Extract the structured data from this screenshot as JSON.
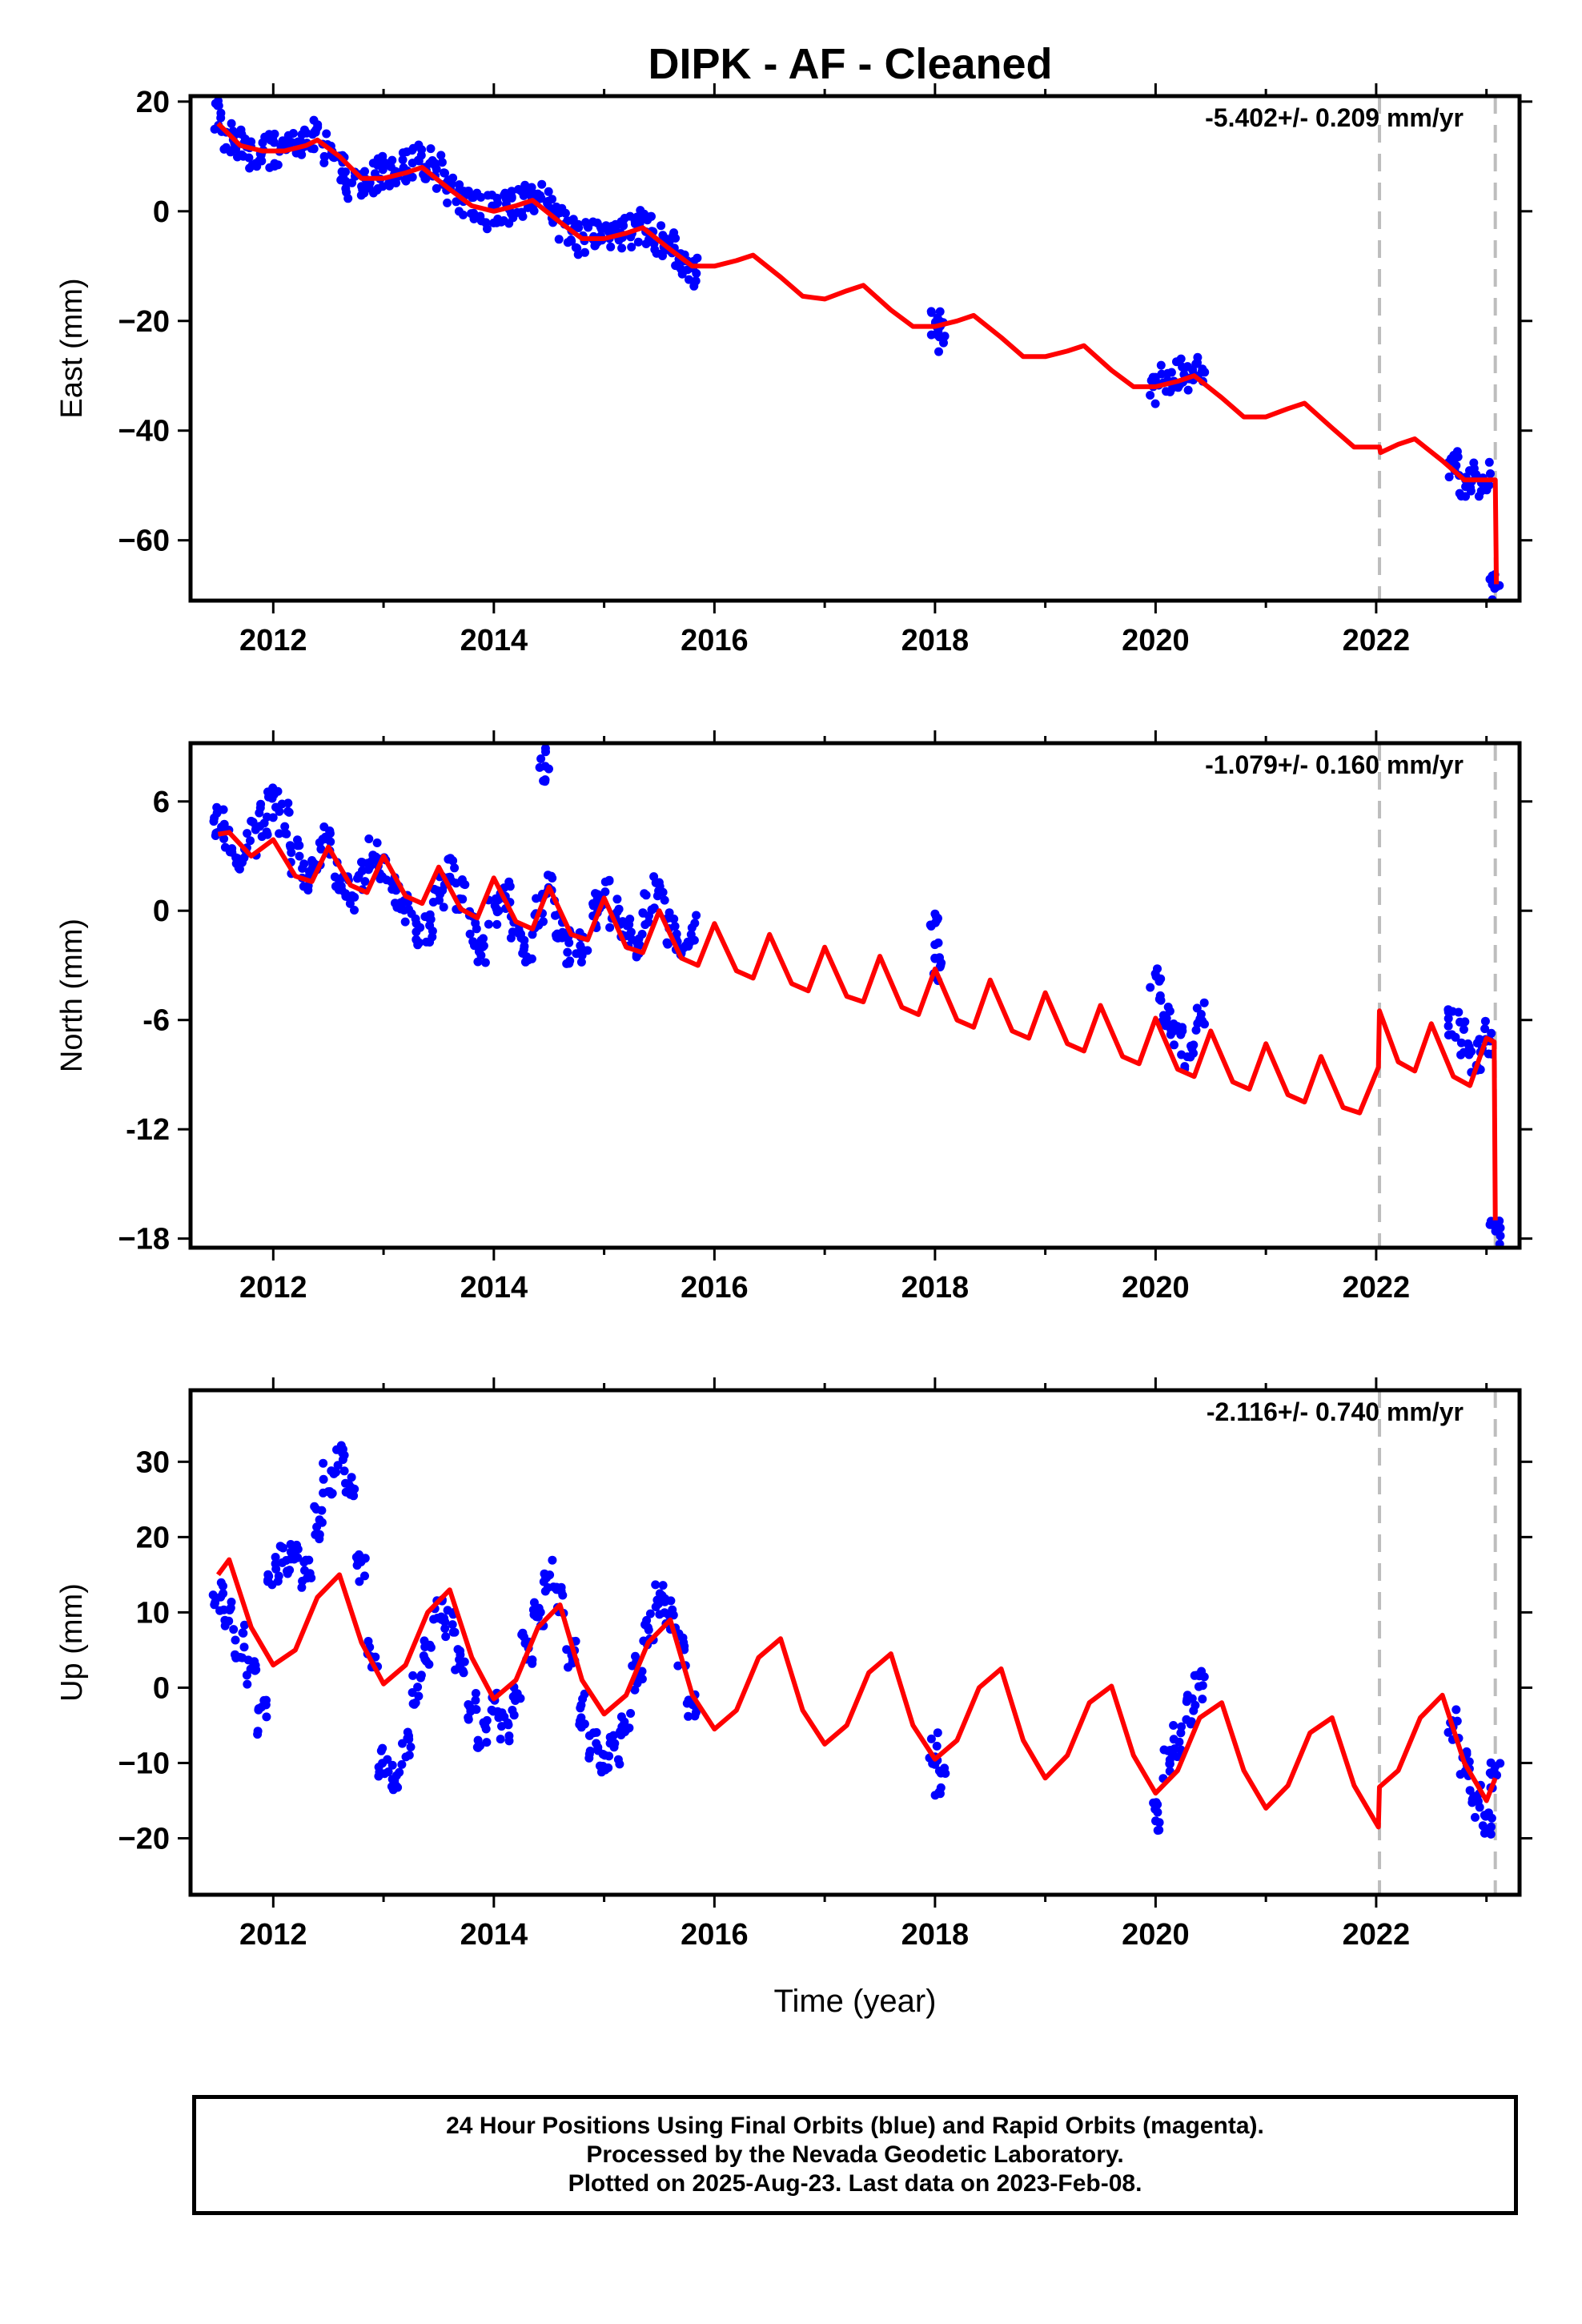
{
  "page": {
    "title": "DIPK  - AF - Cleaned",
    "xlabel": "Time (year)"
  },
  "colors": {
    "data_points": "#0000ff",
    "model_fit": "#ff0000",
    "dashed_lines": "#bdbdbd",
    "axes": "#000000"
  },
  "footer": {
    "line1": "24 Hour Positions Using Final Orbits (blue) and Rapid Orbits (magenta).",
    "line2": "Processed by the Nevada Geodetic Laboratory.",
    "line3": "Plotted on 2025-Aug-23. Last data on 2023-Feb-08."
  },
  "chart_data": [
    {
      "type": "scatter",
      "ylabel": "East (mm)",
      "rate_text": "-5.402+/- 0.209 mm/yr",
      "xlim": [
        2011.25,
        2023.3
      ],
      "ylim": [
        -71,
        21
      ],
      "xticks": [
        2012,
        2014,
        2016,
        2018,
        2020,
        2022
      ],
      "yticks": [
        20,
        0,
        -20,
        -40,
        -60
      ],
      "ytick_labels": [
        "20",
        "0",
        "−20",
        "−40",
        "−60"
      ],
      "vlines": [
        2022.03,
        2023.08
      ],
      "grid": false,
      "series": [
        {
          "kind": "points",
          "x": [
            2011.5,
            2011.6,
            2011.7,
            2011.8,
            2011.9,
            2012.0,
            2012.1,
            2012.2,
            2012.3,
            2012.4,
            2012.5,
            2012.6,
            2012.7,
            2012.8,
            2012.9,
            2013.0,
            2013.1,
            2013.2,
            2013.3,
            2013.4,
            2013.5,
            2013.6,
            2013.7,
            2013.8,
            2013.9,
            2014.0,
            2014.1,
            2014.2,
            2014.3,
            2014.4,
            2014.5,
            2014.6,
            2014.7,
            2014.8,
            2014.9,
            2015.0,
            2015.1,
            2015.2,
            2015.3,
            2015.4,
            2015.5,
            2015.6,
            2015.7,
            2015.8,
            2018.0,
            2018.05,
            2020.0,
            2020.1,
            2020.2,
            2020.3,
            2020.4,
            2022.7,
            2022.8,
            2022.9,
            2023.0,
            2023.08
          ],
          "y": [
            17,
            14,
            12,
            11,
            11,
            11,
            11,
            12,
            13,
            14,
            11,
            8,
            5,
            5,
            6,
            7,
            7,
            8,
            9,
            9,
            7,
            4,
            2,
            1,
            0,
            1,
            1,
            1,
            2,
            3,
            1,
            -2,
            -4,
            -5,
            -5,
            -5,
            -5,
            -4,
            -3,
            -3,
            -5,
            -7,
            -9,
            -11,
            -21,
            -23,
            -32,
            -31,
            -30,
            -30,
            -29,
            -47,
            -49,
            -49,
            -49,
            -68
          ]
        },
        {
          "kind": "line",
          "x": [
            2011.5,
            2011.7,
            2011.9,
            2012.1,
            2012.3,
            2012.4,
            2012.6,
            2012.8,
            2013.0,
            2013.2,
            2013.35,
            2013.6,
            2013.8,
            2014.0,
            2014.2,
            2014.35,
            2014.6,
            2014.8,
            2015.0,
            2015.2,
            2015.35,
            2015.6,
            2015.8,
            2016.0,
            2016.2,
            2016.35,
            2016.6,
            2016.8,
            2017.0,
            2017.2,
            2017.35,
            2017.6,
            2017.8,
            2018.0,
            2018.2,
            2018.35,
            2018.6,
            2018.8,
            2019.0,
            2019.2,
            2019.35,
            2019.6,
            2019.8,
            2020.0,
            2020.2,
            2020.35,
            2020.6,
            2020.8,
            2021.0,
            2021.2,
            2021.35,
            2021.6,
            2021.8,
            2022.03,
            2022.04,
            2022.2,
            2022.35,
            2022.6,
            2022.8,
            2023.08,
            2023.09
          ],
          "y": [
            16,
            12,
            11,
            11,
            12,
            13,
            10,
            6,
            6,
            7,
            8,
            4,
            1,
            0,
            1,
            2,
            -2,
            -5,
            -5,
            -4,
            -3,
            -7,
            -10,
            -10,
            -9,
            -8,
            -12,
            -15.5,
            -16,
            -14.5,
            -13.5,
            -18,
            -21,
            -21,
            -20,
            -19,
            -23,
            -26.5,
            -26.5,
            -25.5,
            -24.5,
            -29,
            -32,
            -32,
            -31,
            -30,
            -34,
            -37.5,
            -37.5,
            -36,
            -35,
            -39.5,
            -43,
            -43,
            -44,
            -42.5,
            -41.5,
            -45.5,
            -49,
            -49,
            -68
          ]
        }
      ]
    },
    {
      "type": "scatter",
      "ylabel": "North (mm)",
      "rate_text": "-1.079+/- 0.160 mm/yr",
      "xlim": [
        2011.25,
        2023.3
      ],
      "ylim": [
        -18.5,
        9.2
      ],
      "xticks": [
        2012,
        2014,
        2016,
        2018,
        2020,
        2022
      ],
      "yticks": [
        6,
        0,
        -6,
        -12,
        -18
      ],
      "ytick_labels": [
        "6",
        "0",
        "-6",
        "-12",
        "−18"
      ],
      "vlines": [
        2022.03,
        2023.08
      ],
      "grid": false,
      "series": [
        {
          "kind": "points",
          "x": [
            2011.5,
            2011.6,
            2011.7,
            2011.8,
            2011.9,
            2012.0,
            2012.1,
            2012.2,
            2012.3,
            2012.4,
            2012.5,
            2012.6,
            2012.7,
            2012.8,
            2012.9,
            2013.0,
            2013.1,
            2013.2,
            2013.3,
            2013.4,
            2013.5,
            2013.6,
            2013.7,
            2013.8,
            2013.9,
            2014.0,
            2014.1,
            2014.2,
            2014.3,
            2014.4,
            2014.45,
            2014.5,
            2014.6,
            2014.7,
            2014.8,
            2014.9,
            2015.0,
            2015.1,
            2015.2,
            2015.3,
            2015.4,
            2015.5,
            2015.6,
            2015.7,
            2015.8,
            2018.0,
            2018.02,
            2020.0,
            2020.1,
            2020.2,
            2020.3,
            2020.4,
            2022.7,
            2022.8,
            2022.9,
            2023.0,
            2023.08
          ],
          "y": [
            5,
            4,
            3,
            4,
            5,
            6,
            5,
            3,
            2,
            3,
            4,
            2,
            1,
            2,
            3,
            2,
            1,
            0,
            -1,
            -1,
            1,
            2,
            1,
            -1,
            -2,
            0,
            1,
            -1,
            -2,
            0,
            8,
            1,
            -1,
            -2,
            -2,
            0,
            1,
            0,
            -1,
            -2,
            0,
            1,
            -1,
            -2,
            -1,
            -1,
            -3,
            -4,
            -6,
            -7,
            -8,
            -6,
            -6,
            -7,
            -8,
            -7,
            -18
          ]
        },
        {
          "kind": "line",
          "x": [
            2011.5,
            2011.6,
            2011.8,
            2012.0,
            2012.2,
            2012.35,
            2012.5,
            2012.7,
            2012.85,
            2013.0,
            2013.2,
            2013.35,
            2013.5,
            2013.7,
            2013.85,
            2014.0,
            2014.2,
            2014.35,
            2014.5,
            2014.7,
            2014.85,
            2015.0,
            2015.2,
            2015.35,
            2015.5,
            2015.7,
            2015.85,
            2016.0,
            2016.2,
            2016.35,
            2016.5,
            2016.7,
            2016.85,
            2017.0,
            2017.2,
            2017.35,
            2017.5,
            2017.7,
            2017.85,
            2018.0,
            2018.2,
            2018.35,
            2018.5,
            2018.7,
            2018.85,
            2019.0,
            2019.2,
            2019.35,
            2019.5,
            2019.7,
            2019.85,
            2020.0,
            2020.2,
            2020.35,
            2020.5,
            2020.7,
            2020.85,
            2021.0,
            2021.2,
            2021.35,
            2021.5,
            2021.7,
            2021.85,
            2022.02,
            2022.03,
            2022.2,
            2022.35,
            2022.5,
            2022.7,
            2022.85,
            2023.0,
            2023.07,
            2023.08
          ],
          "y": [
            4.2,
            4.3,
            3.0,
            3.9,
            1.9,
            1.6,
            3.5,
            1.4,
            1.0,
            3.0,
            0.8,
            0.4,
            2.4,
            0.1,
            -0.4,
            1.8,
            -0.6,
            -1.0,
            1.3,
            -1.3,
            -1.6,
            0.7,
            -2.0,
            -2.3,
            0.0,
            -2.6,
            -3.0,
            -0.7,
            -3.3,
            -3.7,
            -1.3,
            -4.0,
            -4.4,
            -2.0,
            -4.7,
            -5.0,
            -2.5,
            -5.3,
            -5.7,
            -3.2,
            -6.0,
            -6.4,
            -3.8,
            -6.6,
            -7.0,
            -4.5,
            -7.3,
            -7.7,
            -5.2,
            -8.0,
            -8.4,
            -5.9,
            -8.7,
            -9.1,
            -6.6,
            -9.4,
            -9.8,
            -7.3,
            -10.1,
            -10.5,
            -8.0,
            -10.8,
            -11.1,
            -8.6,
            -5.5,
            -8.3,
            -8.8,
            -6.2,
            -9.1,
            -9.6,
            -7.0,
            -7.2,
            -17.0
          ]
        }
      ]
    },
    {
      "type": "scatter",
      "ylabel": "Up (mm)",
      "rate_text": "-2.116+/- 0.740 mm/yr",
      "xlim": [
        2011.25,
        2023.3
      ],
      "ylim": [
        -27.5,
        39.5
      ],
      "xticks": [
        2012,
        2014,
        2016,
        2018,
        2020,
        2022
      ],
      "yticks": [
        30,
        20,
        10,
        0,
        -10,
        -20
      ],
      "ytick_labels": [
        "30",
        "20",
        "10",
        "0",
        "−10",
        "−20"
      ],
      "vlines": [
        2022.03,
        2023.08
      ],
      "grid": false,
      "series": [
        {
          "kind": "points",
          "x": [
            2011.5,
            2011.6,
            2011.7,
            2011.8,
            2011.9,
            2012.0,
            2012.1,
            2012.2,
            2012.3,
            2012.4,
            2012.5,
            2012.6,
            2012.7,
            2012.8,
            2012.9,
            2013.0,
            2013.1,
            2013.2,
            2013.3,
            2013.4,
            2013.5,
            2013.6,
            2013.7,
            2013.8,
            2013.9,
            2014.0,
            2014.1,
            2014.2,
            2014.3,
            2014.4,
            2014.5,
            2014.6,
            2014.7,
            2014.8,
            2014.9,
            2015.0,
            2015.1,
            2015.2,
            2015.3,
            2015.4,
            2015.5,
            2015.6,
            2015.7,
            2015.8,
            2018.0,
            2018.05,
            2020.0,
            2020.1,
            2020.2,
            2020.3,
            2020.4,
            2022.7,
            2022.8,
            2022.9,
            2023.0,
            2023.08
          ],
          "y": [
            12,
            10,
            6,
            2,
            -4,
            16,
            17,
            18,
            15,
            22,
            28,
            30,
            26,
            16,
            5,
            -10,
            -12,
            -8,
            0,
            5,
            10,
            8,
            4,
            -2,
            -6,
            -3,
            -5,
            -2,
            5,
            10,
            15,
            12,
            5,
            -3,
            -8,
            -10,
            -8,
            -5,
            2,
            8,
            12,
            10,
            5,
            -2,
            -8,
            -13,
            -17,
            -10,
            -7,
            -3,
            0,
            -5,
            -10,
            -15,
            -18,
            -12
          ]
        },
        {
          "kind": "line",
          "x": [
            2011.5,
            2011.6,
            2011.8,
            2012.0,
            2012.2,
            2012.4,
            2012.6,
            2012.8,
            2013.0,
            2013.2,
            2013.4,
            2013.6,
            2013.8,
            2014.0,
            2014.2,
            2014.4,
            2014.6,
            2014.8,
            2015.0,
            2015.2,
            2015.4,
            2015.6,
            2015.8,
            2016.0,
            2016.2,
            2016.4,
            2016.6,
            2016.8,
            2017.0,
            2017.2,
            2017.4,
            2017.6,
            2017.8,
            2018.0,
            2018.2,
            2018.4,
            2018.6,
            2018.8,
            2019.0,
            2019.2,
            2019.4,
            2019.6,
            2019.8,
            2020.0,
            2020.2,
            2020.4,
            2020.6,
            2020.8,
            2021.0,
            2021.2,
            2021.4,
            2021.6,
            2021.8,
            2022.02,
            2022.03,
            2022.2,
            2022.4,
            2022.6,
            2022.8,
            2023.0,
            2023.08
          ],
          "y": [
            15,
            17,
            8,
            3,
            5,
            12,
            15,
            6,
            0.5,
            3,
            10,
            13,
            4,
            -1.5,
            1,
            8,
            11,
            1,
            -3.5,
            -1,
            6,
            9,
            -1,
            -5.5,
            -3,
            4,
            6.5,
            -3,
            -7.5,
            -5,
            2,
            4.5,
            -5,
            -9.5,
            -7,
            0,
            2.5,
            -7,
            -12,
            -9,
            -2,
            0.2,
            -9,
            -14,
            -11,
            -4,
            -2,
            -11,
            -16,
            -13,
            -6,
            -4,
            -13,
            -18.5,
            -13.2,
            -11,
            -4,
            -1,
            -10,
            -15,
            -12
          ]
        }
      ]
    }
  ]
}
